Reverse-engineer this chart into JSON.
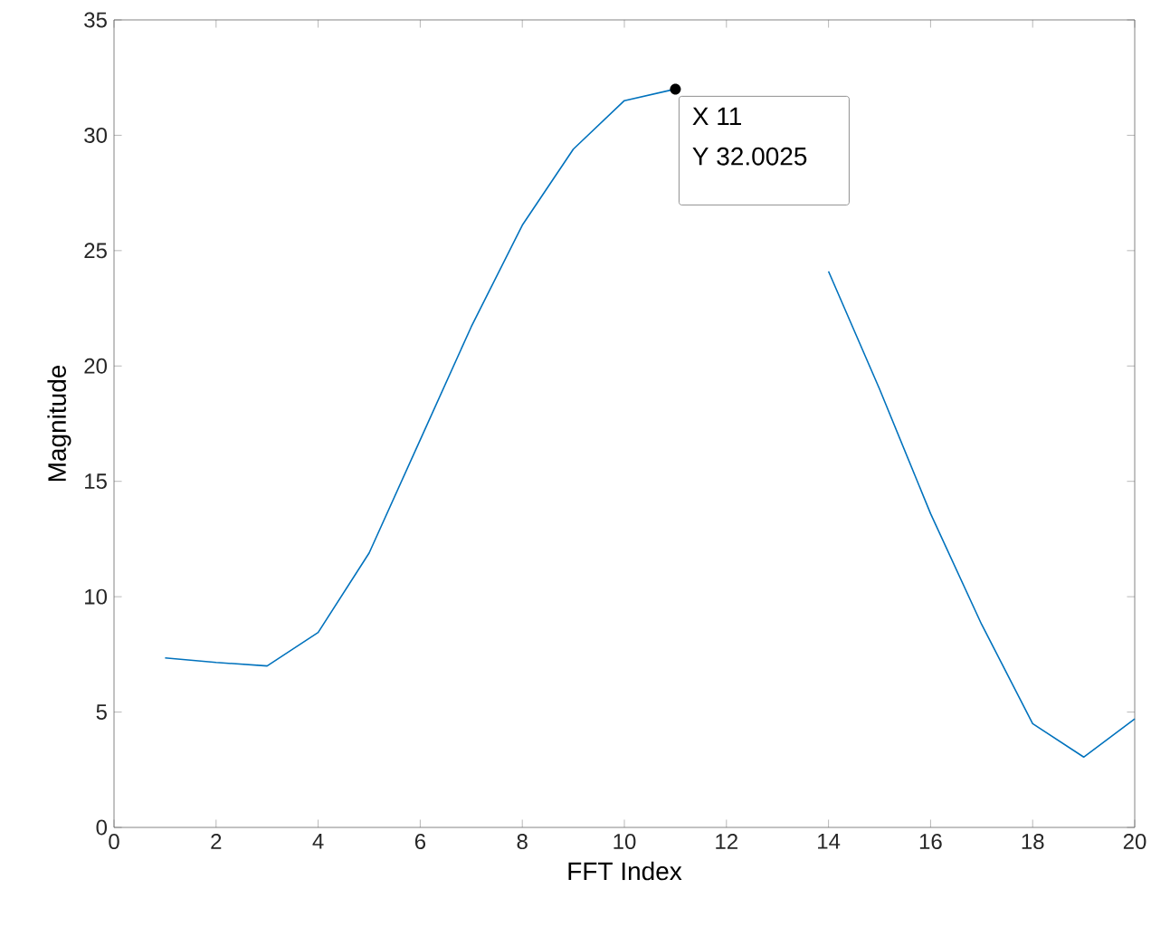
{
  "chart_data": {
    "type": "line",
    "xlabel": "FFT Index",
    "ylabel": "Magnitude",
    "x": [
      1,
      2,
      3,
      4,
      5,
      6,
      7,
      8,
      9,
      10,
      11,
      12,
      13,
      14,
      15,
      16,
      17,
      18,
      19,
      20
    ],
    "series": [
      {
        "color": "#0072bd",
        "values": [
          7.35,
          7.15,
          7.0,
          8.45,
          11.9,
          16.8,
          21.7,
          26.1,
          29.4,
          31.5,
          32.0025,
          null,
          null,
          24.1,
          19.0,
          13.6,
          8.8,
          4.5,
          3.05,
          4.7
        ]
      }
    ],
    "xlim": [
      0,
      20
    ],
    "ylim": [
      0,
      35
    ],
    "xticks": [
      0,
      2,
      4,
      6,
      8,
      10,
      12,
      14,
      16,
      18,
      20
    ],
    "yticks": [
      0,
      5,
      10,
      15,
      20,
      25,
      30,
      35
    ],
    "annotations": [
      {
        "text": "X 11",
        "x": 11,
        "y": 32.0025
      },
      {
        "text": "Y 32.0025",
        "x": 11,
        "y": 32.0025
      }
    ]
  }
}
